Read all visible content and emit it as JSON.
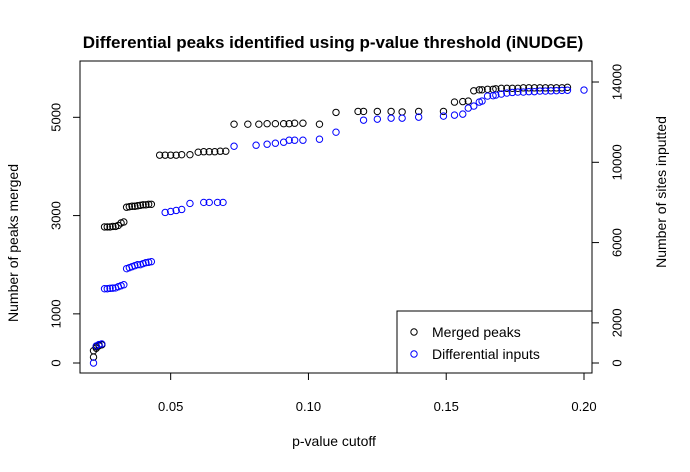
{
  "chart_data": {
    "type": "scatter",
    "title": "Differential peaks identified using p-value threshold (iNUDGE)",
    "xlabel": "p-value cutoff",
    "ylabel_left": "Number of peaks merged",
    "ylabel_right": "Number of sites inputted",
    "xlim": [
      0.02,
      0.2
    ],
    "ylim_left": [
      0,
      5800
    ],
    "ylim_right": [
      0,
      14200
    ],
    "x_ticks": [
      0.05,
      0.1,
      0.15,
      0.2
    ],
    "x_tick_labels": [
      "0.05",
      "0.10",
      "0.15",
      "0.20"
    ],
    "y_left_ticks": [
      0,
      1000,
      3000,
      5000
    ],
    "y_left_tick_labels": [
      "0",
      "1000",
      "3000",
      "5000"
    ],
    "y_right_ticks": [
      0,
      2000,
      6000,
      10000,
      14000
    ],
    "y_right_tick_labels": [
      "0",
      "2000",
      "6000",
      "10000",
      "14000"
    ],
    "grid": false,
    "legend_position": "bottom-right",
    "series": [
      {
        "name": "Merged peaks",
        "axis": "left",
        "color": "#000000",
        "x": [
          0.022,
          0.022,
          0.023,
          0.023,
          0.024,
          0.024,
          0.025,
          0.025,
          0.026,
          0.027,
          0.028,
          0.029,
          0.03,
          0.031,
          0.032,
          0.033,
          0.034,
          0.035,
          0.036,
          0.037,
          0.038,
          0.039,
          0.04,
          0.041,
          0.042,
          0.043,
          0.046,
          0.048,
          0.05,
          0.052,
          0.054,
          0.057,
          0.06,
          0.062,
          0.064,
          0.066,
          0.068,
          0.07,
          0.073,
          0.078,
          0.082,
          0.085,
          0.088,
          0.091,
          0.093,
          0.095,
          0.098,
          0.104,
          0.11,
          0.118,
          0.12,
          0.125,
          0.13,
          0.134,
          0.14,
          0.149,
          0.153,
          0.156,
          0.158,
          0.16,
          0.162,
          0.163,
          0.165,
          0.167,
          0.168,
          0.17,
          0.172,
          0.174,
          0.176,
          0.178,
          0.18,
          0.182,
          0.184,
          0.186,
          0.188,
          0.19,
          0.192,
          0.194
        ],
        "y": [
          120,
          250,
          300,
          330,
          350,
          360,
          370,
          380,
          2770,
          2770,
          2770,
          2780,
          2780,
          2800,
          2850,
          2870,
          3170,
          3180,
          3190,
          3190,
          3200,
          3210,
          3220,
          3220,
          3230,
          3230,
          4230,
          4230,
          4230,
          4230,
          4240,
          4240,
          4290,
          4300,
          4300,
          4300,
          4310,
          4310,
          4860,
          4860,
          4860,
          4870,
          4870,
          4870,
          4870,
          4880,
          4880,
          4860,
          5100,
          5120,
          5120,
          5120,
          5120,
          5110,
          5120,
          5120,
          5310,
          5320,
          5330,
          5540,
          5560,
          5560,
          5570,
          5570,
          5580,
          5590,
          5590,
          5590,
          5590,
          5600,
          5600,
          5600,
          5600,
          5600,
          5600,
          5600,
          5600,
          5610
        ]
      },
      {
        "name": "Differential inputs",
        "axis": "right",
        "color": "#0000ff",
        "x": [
          0.022,
          0.023,
          0.024,
          0.025,
          0.026,
          0.027,
          0.028,
          0.029,
          0.03,
          0.031,
          0.032,
          0.033,
          0.034,
          0.035,
          0.036,
          0.037,
          0.038,
          0.039,
          0.04,
          0.041,
          0.042,
          0.043,
          0.048,
          0.05,
          0.052,
          0.054,
          0.057,
          0.062,
          0.064,
          0.067,
          0.069,
          0.073,
          0.081,
          0.085,
          0.088,
          0.091,
          0.093,
          0.095,
          0.098,
          0.104,
          0.11,
          0.12,
          0.125,
          0.13,
          0.134,
          0.14,
          0.149,
          0.153,
          0.156,
          0.158,
          0.16,
          0.162,
          0.163,
          0.165,
          0.167,
          0.168,
          0.17,
          0.172,
          0.174,
          0.176,
          0.178,
          0.18,
          0.182,
          0.184,
          0.186,
          0.188,
          0.19,
          0.192,
          0.194,
          0.2
        ],
        "y": [
          0,
          850,
          920,
          950,
          3700,
          3700,
          3720,
          3730,
          3740,
          3800,
          3850,
          3900,
          4700,
          4750,
          4800,
          4850,
          4900,
          4900,
          4950,
          5000,
          5020,
          5050,
          7500,
          7550,
          7600,
          7650,
          7950,
          8000,
          8000,
          8000,
          8000,
          10800,
          10850,
          10900,
          10950,
          11000,
          11100,
          11100,
          11100,
          11150,
          11500,
          12100,
          12150,
          12200,
          12200,
          12250,
          12300,
          12350,
          12400,
          12700,
          12800,
          13000,
          13050,
          13300,
          13320,
          13350,
          13400,
          13450,
          13480,
          13500,
          13500,
          13520,
          13520,
          13550,
          13550,
          13560,
          13570,
          13580,
          13590,
          13600
        ]
      }
    ]
  }
}
